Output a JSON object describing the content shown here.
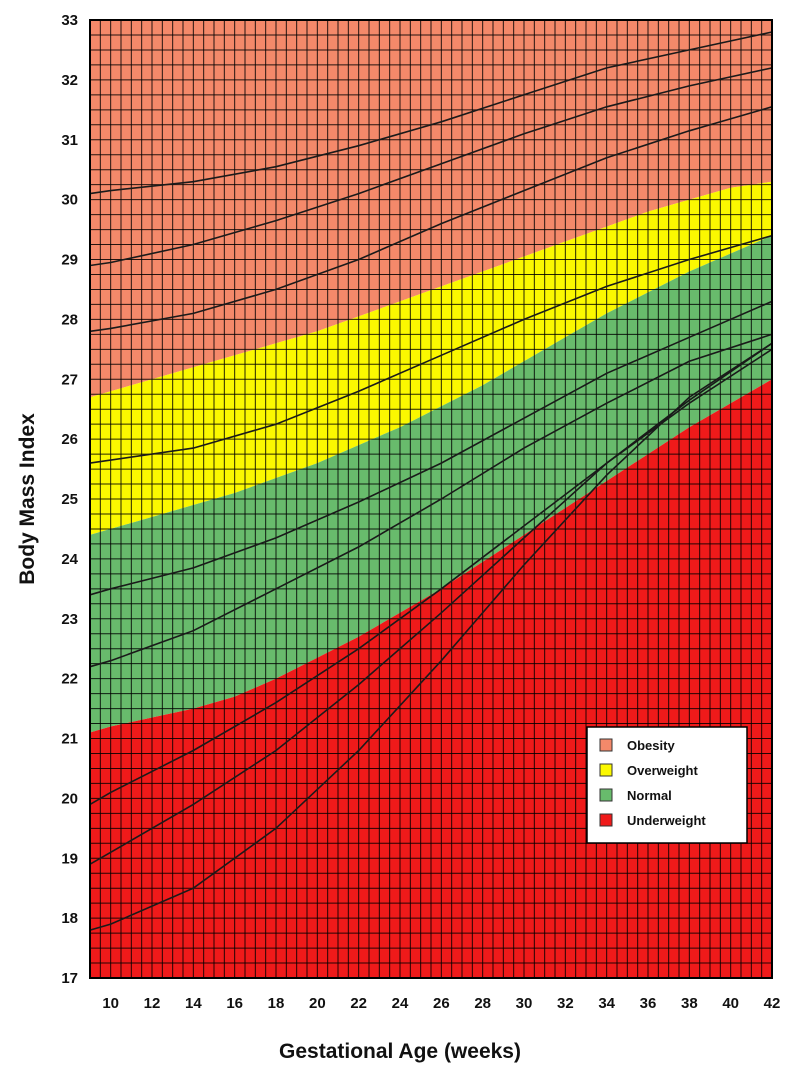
{
  "chart_data": {
    "type": "area",
    "title": "",
    "xlabel": "Gestational Age (weeks)",
    "ylabel": "Body Mass Index",
    "xlim": [
      9,
      42
    ],
    "ylim": [
      17,
      33
    ],
    "x_ticks": [
      10,
      12,
      14,
      16,
      18,
      20,
      22,
      24,
      26,
      28,
      30,
      32,
      34,
      36,
      38,
      40,
      42
    ],
    "y_ticks": [
      17,
      18,
      19,
      20,
      21,
      22,
      23,
      24,
      25,
      26,
      27,
      28,
      29,
      30,
      31,
      32,
      33
    ],
    "grid": true,
    "legend_position": "bottom-right",
    "x": [
      9,
      10,
      12,
      14,
      16,
      18,
      20,
      22,
      24,
      26,
      28,
      30,
      32,
      34,
      36,
      38,
      40,
      42
    ],
    "band_boundaries": [
      {
        "band": "Obesity",
        "lower": [
          26.7,
          26.8,
          27.0,
          27.2,
          27.4,
          27.6,
          27.8,
          28.05,
          28.3,
          28.55,
          28.8,
          29.05,
          29.3,
          29.55,
          29.8,
          30.0,
          30.2,
          30.3
        ]
      },
      {
        "band": "Overweight",
        "lower": [
          24.4,
          24.5,
          24.7,
          24.9,
          25.1,
          25.35,
          25.6,
          25.9,
          26.2,
          26.55,
          26.9,
          27.3,
          27.7,
          28.1,
          28.45,
          28.8,
          29.1,
          29.4
        ]
      },
      {
        "band": "Normal",
        "lower": [
          21.1,
          21.2,
          21.35,
          21.5,
          21.7,
          22.0,
          22.35,
          22.7,
          23.1,
          23.5,
          23.95,
          24.4,
          24.85,
          25.3,
          25.75,
          26.2,
          26.6,
          27.0
        ]
      }
    ],
    "series": [
      {
        "name": "Obesity",
        "color": "#f4896a"
      },
      {
        "name": "Overweight",
        "color": "#fbf800"
      },
      {
        "name": "Normal",
        "color": "#68bb6c"
      },
      {
        "name": "Underweight",
        "color": "#ef1a1a"
      }
    ],
    "lines": [
      {
        "x": [
          9,
          10,
          14,
          18,
          22,
          26,
          30,
          34,
          38,
          42
        ],
        "y": [
          30.1,
          30.15,
          30.3,
          30.55,
          30.9,
          31.3,
          31.75,
          32.2,
          32.5,
          32.8
        ]
      },
      {
        "x": [
          9,
          10,
          14,
          18,
          22,
          26,
          30,
          34,
          38,
          42
        ],
        "y": [
          28.9,
          28.95,
          29.25,
          29.65,
          30.1,
          30.6,
          31.1,
          31.55,
          31.9,
          32.2
        ]
      },
      {
        "x": [
          9,
          10,
          14,
          18,
          22,
          26,
          30,
          34,
          38,
          42
        ],
        "y": [
          27.8,
          27.85,
          28.1,
          28.5,
          29.0,
          29.6,
          30.15,
          30.7,
          31.15,
          31.55
        ]
      },
      {
        "x": [
          9,
          10,
          14,
          18,
          22,
          26,
          30,
          34,
          38,
          42
        ],
        "y": [
          25.6,
          25.65,
          25.85,
          26.25,
          26.8,
          27.4,
          28.0,
          28.55,
          29.0,
          29.4
        ]
      },
      {
        "x": [
          9,
          10,
          14,
          18,
          22,
          26,
          30,
          34,
          38,
          42
        ],
        "y": [
          23.4,
          23.5,
          23.85,
          24.35,
          24.95,
          25.6,
          26.35,
          27.1,
          27.7,
          28.3
        ]
      },
      {
        "x": [
          9,
          10,
          14,
          18,
          22,
          26,
          30,
          34,
          38,
          42
        ],
        "y": [
          22.2,
          22.3,
          22.8,
          23.5,
          24.2,
          25.0,
          25.85,
          26.6,
          27.3,
          27.75
        ]
      },
      {
        "x": [
          9,
          10,
          14,
          18,
          22,
          26,
          30,
          34,
          38,
          42
        ],
        "y": [
          19.9,
          20.1,
          20.8,
          21.6,
          22.5,
          23.5,
          24.55,
          25.6,
          26.6,
          27.5
        ]
      },
      {
        "x": [
          9,
          10,
          14,
          18,
          22,
          26,
          30,
          34,
          38,
          42
        ],
        "y": [
          18.9,
          19.1,
          19.9,
          20.8,
          21.9,
          23.1,
          24.35,
          25.6,
          26.65,
          27.6
        ]
      },
      {
        "x": [
          9,
          10,
          14,
          18,
          22,
          26,
          30,
          34,
          38,
          42
        ],
        "y": [
          17.8,
          17.9,
          18.5,
          19.5,
          20.8,
          22.3,
          23.9,
          25.4,
          26.7,
          27.6
        ]
      }
    ]
  }
}
